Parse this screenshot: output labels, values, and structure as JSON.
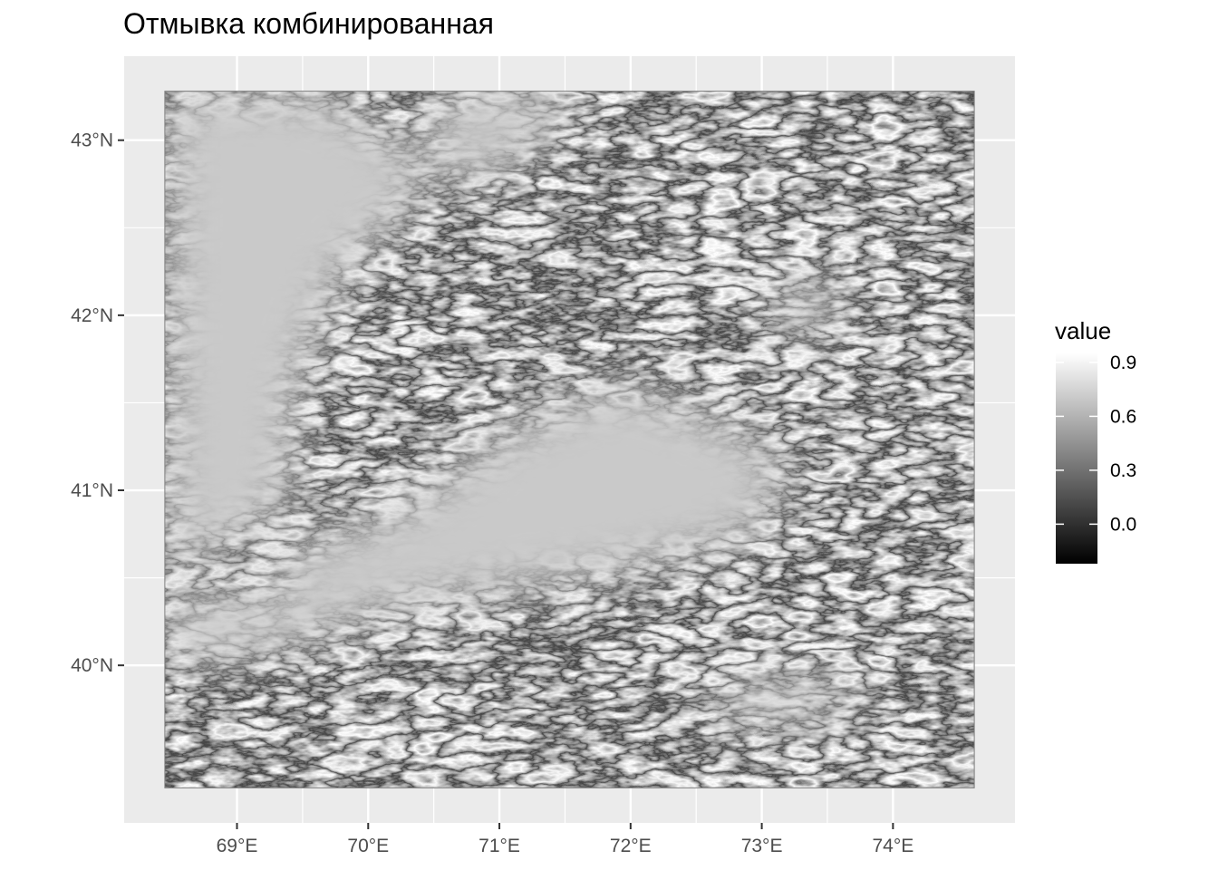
{
  "title": "Отмывка комбинированная",
  "map": {
    "x_ticks": [
      {
        "value": 69,
        "label": "69°E"
      },
      {
        "value": 70,
        "label": "70°E"
      },
      {
        "value": 71,
        "label": "71°E"
      },
      {
        "value": 72,
        "label": "72°E"
      },
      {
        "value": 73,
        "label": "73°E"
      },
      {
        "value": 74,
        "label": "74°E"
      }
    ],
    "y_ticks": [
      {
        "value": 40,
        "label": "40°N"
      },
      {
        "value": 41,
        "label": "41°N"
      },
      {
        "value": 42,
        "label": "42°N"
      },
      {
        "value": 43,
        "label": "43°N"
      }
    ],
    "raster_extent": {
      "lon": [
        68.45,
        74.62
      ],
      "lat": [
        39.3,
        43.28
      ]
    },
    "panel_extent": {
      "lon": [
        68.14,
        74.93
      ],
      "lat": [
        39.1,
        43.48
      ]
    },
    "panel_background": "#ebebeb",
    "grid_color": "#ffffff"
  },
  "legend": {
    "title": "value",
    "range": [
      -0.22,
      0.95
    ],
    "ticks": [
      {
        "value": 0.9,
        "label": "0.9"
      },
      {
        "value": 0.6,
        "label": "0.6"
      },
      {
        "value": 0.3,
        "label": "0.3"
      },
      {
        "value": 0.0,
        "label": "0.0"
      }
    ],
    "color_low": "#000000",
    "color_high": "#ffffff"
  }
}
